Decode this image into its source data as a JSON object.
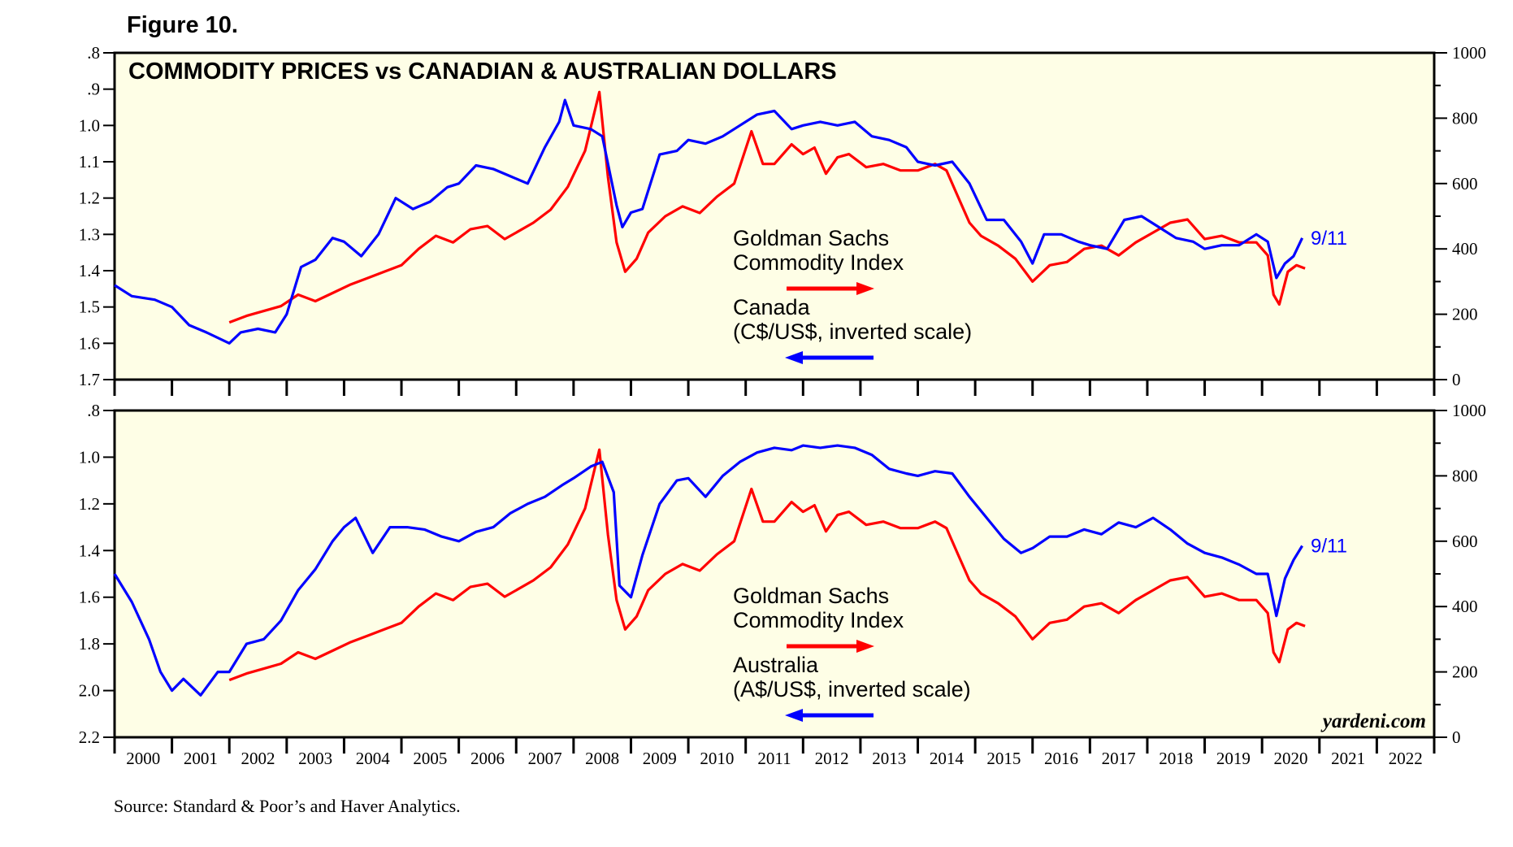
{
  "figure_label": "Figure 10.",
  "source": "Source: Standard & Poor’s and Haver Analytics.",
  "brand": "yardeni.com",
  "colors": {
    "panel_bg": "#fefee6",
    "commodity": "#ff0000",
    "currency": "#0000ff"
  },
  "years": [
    "2000",
    "2001",
    "2002",
    "2003",
    "2004",
    "2005",
    "2006",
    "2007",
    "2008",
    "2009",
    "2010",
    "2011",
    "2012",
    "2013",
    "2014",
    "2015",
    "2016",
    "2017",
    "2018",
    "2019",
    "2020",
    "2021",
    "2022"
  ],
  "chart_data": [
    {
      "type": "line",
      "title": "COMMODITY PRICES vs CANADIAN & AUSTRALIAN DOLLARS",
      "x_range": [
        2000,
        2023
      ],
      "y_left": {
        "min": 0.8,
        "max": 1.7,
        "inverted": true,
        "ticks": [
          ".8",
          ".9",
          "1.0",
          "1.1",
          "1.2",
          "1.3",
          "1.4",
          "1.5",
          "1.6",
          "1.7"
        ],
        "tick_values": [
          0.8,
          0.9,
          1.0,
          1.1,
          1.2,
          1.3,
          1.4,
          1.5,
          1.6,
          1.7
        ]
      },
      "y_right": {
        "min": 0,
        "max": 1000,
        "ticks": [
          "0",
          "200",
          "400",
          "600",
          "800",
          "1000"
        ],
        "tick_values": [
          0,
          200,
          400,
          600,
          800,
          1000
        ]
      },
      "legend": {
        "commodity_line1": "Goldman Sachs",
        "commodity_line2": "Commodity Index",
        "currency_line1": "Canada",
        "currency_line2": "(C$/US$, inverted scale)"
      },
      "end_label": "9/11",
      "series": [
        {
          "name": "Canada (C$/US$, inverted scale)",
          "axis": "left",
          "x": [
            2000.0,
            2000.3,
            2000.7,
            2001.0,
            2001.3,
            2001.6,
            2002.0,
            2002.2,
            2002.5,
            2002.8,
            2003.0,
            2003.25,
            2003.5,
            2003.8,
            2004.0,
            2004.3,
            2004.6,
            2004.9,
            2005.2,
            2005.5,
            2005.8,
            2006.0,
            2006.3,
            2006.6,
            2006.9,
            2007.2,
            2007.5,
            2007.75,
            2007.85,
            2008.0,
            2008.3,
            2008.5,
            2008.75,
            2008.85,
            2009.0,
            2009.2,
            2009.5,
            2009.8,
            2010.0,
            2010.3,
            2010.6,
            2010.9,
            2011.2,
            2011.5,
            2011.8,
            2012.0,
            2012.3,
            2012.6,
            2012.9,
            2013.2,
            2013.5,
            2013.8,
            2014.0,
            2014.3,
            2014.6,
            2014.9,
            2015.2,
            2015.5,
            2015.8,
            2016.0,
            2016.2,
            2016.5,
            2016.8,
            2017.0,
            2017.3,
            2017.6,
            2017.9,
            2018.2,
            2018.5,
            2018.8,
            2019.0,
            2019.3,
            2019.6,
            2019.9,
            2020.1,
            2020.25,
            2020.4,
            2020.55,
            2020.7
          ],
          "values": [
            1.44,
            1.47,
            1.48,
            1.5,
            1.55,
            1.57,
            1.6,
            1.57,
            1.56,
            1.57,
            1.52,
            1.39,
            1.37,
            1.31,
            1.32,
            1.36,
            1.3,
            1.2,
            1.23,
            1.21,
            1.17,
            1.16,
            1.11,
            1.12,
            1.14,
            1.16,
            1.06,
            0.99,
            0.93,
            1.0,
            1.01,
            1.03,
            1.22,
            1.28,
            1.24,
            1.23,
            1.08,
            1.07,
            1.04,
            1.05,
            1.03,
            1.0,
            0.97,
            0.96,
            1.01,
            1.0,
            0.99,
            1.0,
            0.99,
            1.03,
            1.04,
            1.06,
            1.1,
            1.11,
            1.1,
            1.16,
            1.26,
            1.26,
            1.32,
            1.38,
            1.3,
            1.3,
            1.32,
            1.33,
            1.34,
            1.26,
            1.25,
            1.28,
            1.31,
            1.32,
            1.34,
            1.33,
            1.33,
            1.3,
            1.32,
            1.42,
            1.38,
            1.36,
            1.31
          ]
        },
        {
          "name": "Goldman Sachs Commodity Index",
          "axis": "right",
          "x": [
            2002.0,
            2002.3,
            2002.6,
            2002.9,
            2003.2,
            2003.5,
            2003.8,
            2004.1,
            2004.4,
            2004.7,
            2005.0,
            2005.3,
            2005.6,
            2005.9,
            2006.2,
            2006.5,
            2006.8,
            2007.0,
            2007.3,
            2007.6,
            2007.9,
            2008.2,
            2008.45,
            2008.6,
            2008.75,
            2008.9,
            2009.1,
            2009.3,
            2009.6,
            2009.9,
            2010.2,
            2010.5,
            2010.8,
            2011.1,
            2011.3,
            2011.5,
            2011.8,
            2012.0,
            2012.2,
            2012.4,
            2012.6,
            2012.8,
            2013.1,
            2013.4,
            2013.7,
            2014.0,
            2014.3,
            2014.5,
            2014.7,
            2014.9,
            2015.1,
            2015.4,
            2015.7,
            2016.0,
            2016.3,
            2016.6,
            2016.9,
            2017.2,
            2017.5,
            2017.8,
            2018.1,
            2018.4,
            2018.7,
            2019.0,
            2019.3,
            2019.6,
            2019.9,
            2020.1,
            2020.2,
            2020.3,
            2020.45,
            2020.6,
            2020.75
          ],
          "values": [
            175,
            195,
            210,
            225,
            260,
            240,
            265,
            290,
            310,
            330,
            350,
            400,
            440,
            420,
            460,
            470,
            430,
            450,
            480,
            520,
            590,
            700,
            880,
            620,
            420,
            330,
            370,
            450,
            500,
            530,
            510,
            560,
            600,
            760,
            660,
            660,
            720,
            690,
            710,
            630,
            680,
            690,
            650,
            660,
            640,
            640,
            660,
            640,
            560,
            480,
            440,
            410,
            370,
            300,
            350,
            360,
            400,
            410,
            380,
            420,
            450,
            480,
            490,
            430,
            440,
            420,
            420,
            380,
            260,
            230,
            330,
            350,
            340
          ]
        }
      ]
    },
    {
      "type": "line",
      "title": "",
      "x_range": [
        2000,
        2023
      ],
      "y_left": {
        "min": 0.8,
        "max": 2.2,
        "inverted": true,
        "ticks": [
          ".8",
          "1.0",
          "1.2",
          "1.4",
          "1.6",
          "1.8",
          "2.0",
          "2.2"
        ],
        "tick_values": [
          0.8,
          1.0,
          1.2,
          1.4,
          1.6,
          1.8,
          2.0,
          2.2
        ]
      },
      "y_right": {
        "min": 0,
        "max": 1000,
        "ticks": [
          "0",
          "200",
          "400",
          "600",
          "800",
          "1000"
        ],
        "tick_values": [
          0,
          200,
          400,
          600,
          800,
          1000
        ]
      },
      "legend": {
        "commodity_line1": "Goldman Sachs",
        "commodity_line2": "Commodity Index",
        "currency_line1": "Australia",
        "currency_line2": "(A$/US$, inverted scale)"
      },
      "end_label": "9/11",
      "series": [
        {
          "name": "Australia (A$/US$, inverted scale)",
          "axis": "left",
          "x": [
            2000.0,
            2000.3,
            2000.6,
            2000.8,
            2001.0,
            2001.2,
            2001.5,
            2001.8,
            2002.0,
            2002.3,
            2002.6,
            2002.9,
            2003.2,
            2003.5,
            2003.8,
            2004.0,
            2004.2,
            2004.5,
            2004.8,
            2005.1,
            2005.4,
            2005.7,
            2006.0,
            2006.3,
            2006.6,
            2006.9,
            2007.2,
            2007.5,
            2007.8,
            2008.0,
            2008.3,
            2008.5,
            2008.7,
            2008.8,
            2009.0,
            2009.2,
            2009.5,
            2009.8,
            2010.0,
            2010.3,
            2010.6,
            2010.9,
            2011.2,
            2011.5,
            2011.8,
            2012.0,
            2012.3,
            2012.6,
            2012.9,
            2013.2,
            2013.5,
            2013.8,
            2014.0,
            2014.3,
            2014.6,
            2014.9,
            2015.2,
            2015.5,
            2015.8,
            2016.0,
            2016.3,
            2016.6,
            2016.9,
            2017.2,
            2017.5,
            2017.8,
            2018.1,
            2018.4,
            2018.7,
            2019.0,
            2019.3,
            2019.6,
            2019.9,
            2020.1,
            2020.25,
            2020.4,
            2020.55,
            2020.7
          ],
          "values": [
            1.5,
            1.62,
            1.78,
            1.92,
            2.0,
            1.95,
            2.02,
            1.92,
            1.92,
            1.8,
            1.78,
            1.7,
            1.57,
            1.48,
            1.36,
            1.3,
            1.26,
            1.41,
            1.3,
            1.3,
            1.31,
            1.34,
            1.36,
            1.32,
            1.3,
            1.24,
            1.2,
            1.17,
            1.12,
            1.09,
            1.04,
            1.02,
            1.15,
            1.55,
            1.6,
            1.42,
            1.2,
            1.1,
            1.09,
            1.17,
            1.08,
            1.02,
            0.98,
            0.96,
            0.97,
            0.95,
            0.96,
            0.95,
            0.96,
            0.99,
            1.05,
            1.07,
            1.08,
            1.06,
            1.07,
            1.17,
            1.26,
            1.35,
            1.41,
            1.39,
            1.34,
            1.34,
            1.31,
            1.33,
            1.28,
            1.3,
            1.26,
            1.31,
            1.37,
            1.41,
            1.43,
            1.46,
            1.5,
            1.5,
            1.68,
            1.52,
            1.44,
            1.38
          ]
        },
        {
          "name": "Goldman Sachs Commodity Index",
          "axis": "right",
          "x": [
            2002.0,
            2002.3,
            2002.6,
            2002.9,
            2003.2,
            2003.5,
            2003.8,
            2004.1,
            2004.4,
            2004.7,
            2005.0,
            2005.3,
            2005.6,
            2005.9,
            2006.2,
            2006.5,
            2006.8,
            2007.0,
            2007.3,
            2007.6,
            2007.9,
            2008.2,
            2008.45,
            2008.6,
            2008.75,
            2008.9,
            2009.1,
            2009.3,
            2009.6,
            2009.9,
            2010.2,
            2010.5,
            2010.8,
            2011.1,
            2011.3,
            2011.5,
            2011.8,
            2012.0,
            2012.2,
            2012.4,
            2012.6,
            2012.8,
            2013.1,
            2013.4,
            2013.7,
            2014.0,
            2014.3,
            2014.5,
            2014.7,
            2014.9,
            2015.1,
            2015.4,
            2015.7,
            2016.0,
            2016.3,
            2016.6,
            2016.9,
            2017.2,
            2017.5,
            2017.8,
            2018.1,
            2018.4,
            2018.7,
            2019.0,
            2019.3,
            2019.6,
            2019.9,
            2020.1,
            2020.2,
            2020.3,
            2020.45,
            2020.6,
            2020.75
          ],
          "values": [
            175,
            195,
            210,
            225,
            260,
            240,
            265,
            290,
            310,
            330,
            350,
            400,
            440,
            420,
            460,
            470,
            430,
            450,
            480,
            520,
            590,
            700,
            880,
            620,
            420,
            330,
            370,
            450,
            500,
            530,
            510,
            560,
            600,
            760,
            660,
            660,
            720,
            690,
            710,
            630,
            680,
            690,
            650,
            660,
            640,
            640,
            660,
            640,
            560,
            480,
            440,
            410,
            370,
            300,
            350,
            360,
            400,
            410,
            380,
            420,
            450,
            480,
            490,
            430,
            440,
            420,
            420,
            380,
            260,
            230,
            330,
            350,
            340
          ]
        }
      ]
    }
  ]
}
